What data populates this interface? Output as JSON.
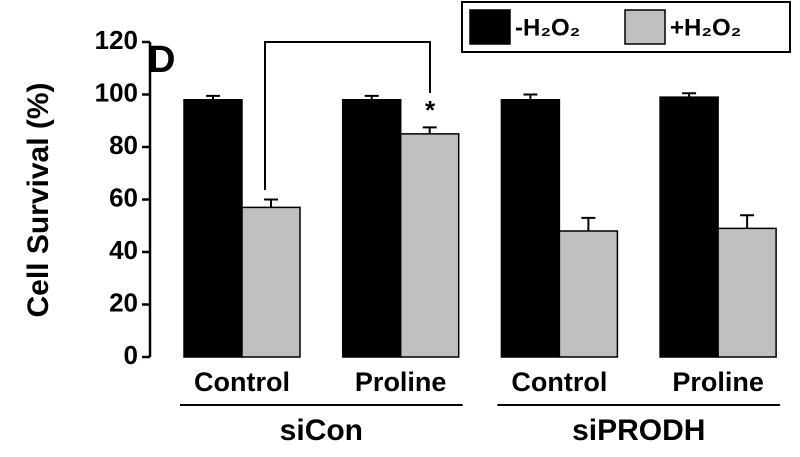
{
  "chart_data": {
    "type": "bar",
    "panel_label": "D",
    "ylabel": "Cell Survival (%)",
    "categories": [
      "Control",
      "Proline",
      "Control",
      "Proline"
    ],
    "group_labels": [
      "siCon",
      "siPRODH"
    ],
    "series": [
      {
        "name": "-H₂O₂",
        "color": "#000000",
        "values": [
          98,
          98,
          98,
          99
        ],
        "errors": [
          1.5,
          1.5,
          2,
          1.5
        ]
      },
      {
        "name": "+H₂O₂",
        "color": "#c0c0c0",
        "values": [
          57,
          85,
          48,
          49
        ],
        "errors": [
          3,
          2.5,
          5,
          5
        ]
      }
    ],
    "annotation": "*",
    "ylim": [
      0,
      120
    ],
    "yticks": [
      0,
      20,
      40,
      60,
      80,
      100,
      120
    ],
    "grid": false,
    "legend": "top-right"
  }
}
